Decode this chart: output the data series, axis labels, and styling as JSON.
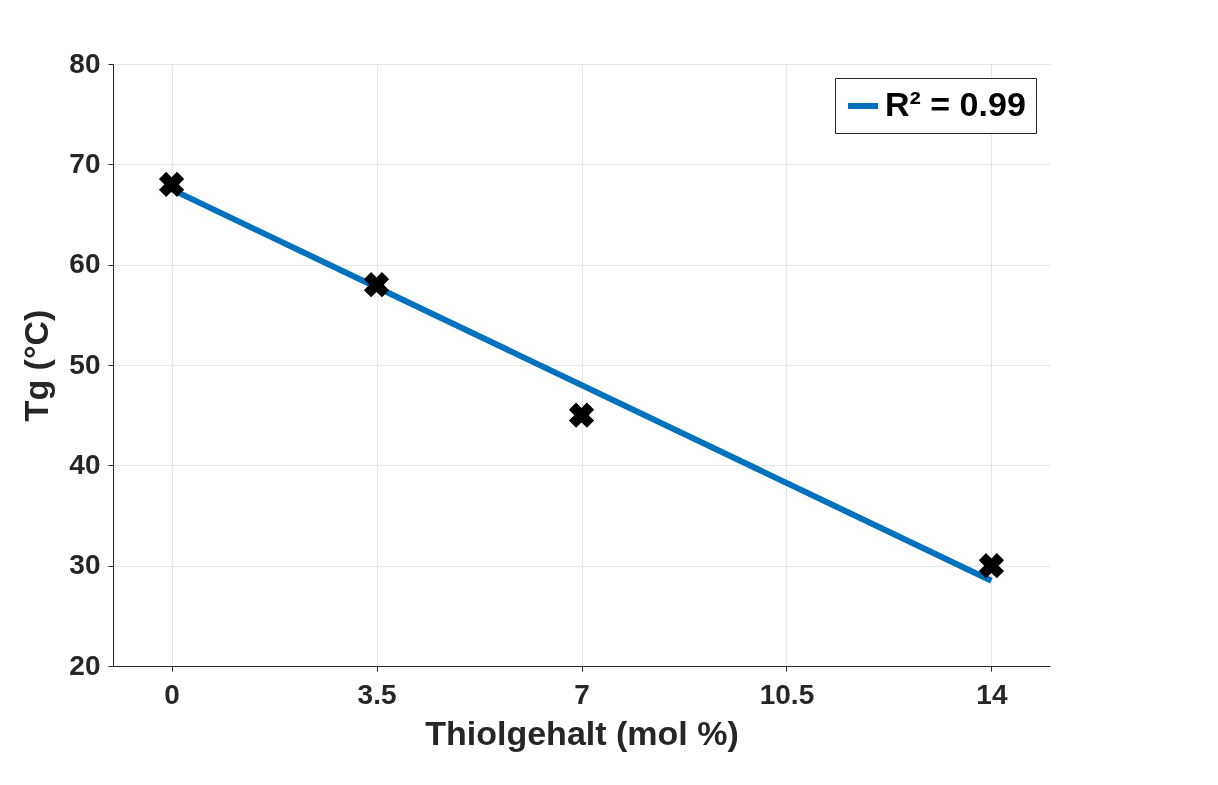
{
  "chart_data": {
    "type": "scatter",
    "xlabel": "Thiolgehalt (mol %)",
    "ylabel": "Tg (°C)",
    "xlim": [
      -1,
      15
    ],
    "xticks": [
      0,
      3.5,
      7,
      10.5,
      14
    ],
    "ylim": [
      20,
      80
    ],
    "yticks": [
      20,
      30,
      40,
      50,
      60,
      70,
      80
    ],
    "grid": true,
    "legend": "top right",
    "series": [
      {
        "type": "line",
        "name": "R² = 0.99",
        "color": "#0072bd",
        "x": [
          0,
          14
        ],
        "values": [
          67.5,
          28.5
        ],
        "line_style": "solid",
        "marker": "none"
      },
      {
        "color": "#000000",
        "x": [
          0,
          3.5,
          7,
          14
        ],
        "values": [
          68,
          58,
          45,
          30
        ],
        "marker": "cross"
      }
    ]
  }
}
